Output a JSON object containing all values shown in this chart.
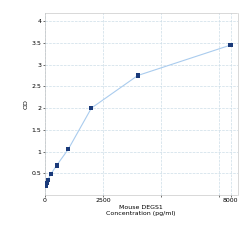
{
  "x_values": [
    31.25,
    62.5,
    125,
    250,
    500,
    1000,
    2000,
    4000,
    8000
  ],
  "y_values": [
    0.21,
    0.27,
    0.35,
    0.48,
    0.68,
    1.05,
    2.0,
    2.75,
    3.45
  ],
  "line_color": "#aaccee",
  "marker_color": "#1a3a7a",
  "marker_style": "s",
  "marker_size": 3,
  "xlim": [
    0,
    8300
  ],
  "ylim": [
    0,
    4.2
  ],
  "yticks": [
    0.5,
    1.0,
    1.5,
    2.0,
    2.5,
    3.0,
    3.5,
    4.0
  ],
  "ytick_labels": [
    "0.5",
    "1",
    "1.5",
    "2",
    "2.5",
    "3",
    "3.5",
    "4"
  ],
  "xticks": [
    0,
    2500,
    5000,
    7500,
    8000
  ],
  "xtick_labels": [
    "0",
    "2500",
    "",
    "",
    "8000"
  ],
  "xlabel_line1": "Mouse DEGS1",
  "xlabel_line2": "Concentration (pg/ml)",
  "ylabel": "OD",
  "grid_color": "#ccdde8",
  "background_color": "#ffffff",
  "axis_fontsize": 4.5,
  "tick_fontsize": 4.5,
  "linewidth": 0.8
}
